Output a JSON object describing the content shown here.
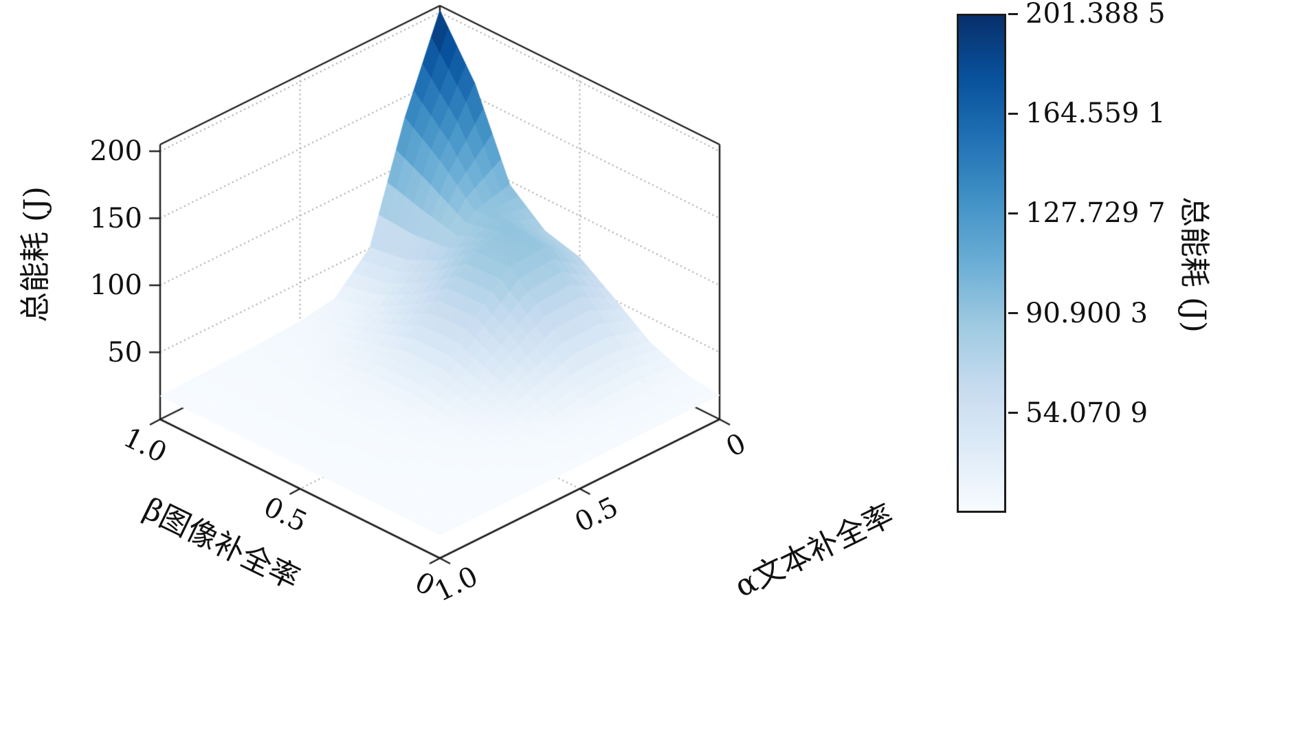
{
  "figure": {
    "background": "#ffffff"
  },
  "chart_data": {
    "type": "surface",
    "title": "",
    "xlabel": "α文本补全率",
    "ylabel": "β图像补全率",
    "zlabel": "总能耗 (J)",
    "x_axis": {
      "ticks": [
        {
          "label": "1.0",
          "value": 1.0
        },
        {
          "label": "0.5",
          "value": 0.5
        },
        {
          "label": "0",
          "value": 0.0
        }
      ],
      "range": [
        0,
        1
      ]
    },
    "y_axis": {
      "ticks": [
        {
          "label": "1.0",
          "value": 1.0
        },
        {
          "label": "0.5",
          "value": 0.5
        },
        {
          "label": "0",
          "value": 0.0
        }
      ],
      "range": [
        0,
        1
      ]
    },
    "z_axis": {
      "ticks": [
        {
          "label": "50",
          "value": 50
        },
        {
          "label": "100",
          "value": 100
        },
        {
          "label": "150",
          "value": 150
        },
        {
          "label": "200",
          "value": 200
        }
      ],
      "range": [
        0,
        205
      ]
    },
    "grid": true,
    "view": {
      "elev": 30,
      "azim": -60
    },
    "colorbar": {
      "label": "总能耗 (J)",
      "vmin": 17.2403,
      "vmax": 201.3885,
      "colormap": "Blues",
      "colormap_stops": [
        [
          0.0,
          "#f7fbff"
        ],
        [
          0.125,
          "#deebf7"
        ],
        [
          0.25,
          "#c6dbef"
        ],
        [
          0.375,
          "#9ecae1"
        ],
        [
          0.5,
          "#6baed6"
        ],
        [
          0.625,
          "#4292c6"
        ],
        [
          0.75,
          "#2171b5"
        ],
        [
          0.875,
          "#08519c"
        ],
        [
          1.0,
          "#08306b"
        ]
      ],
      "ticks": [
        {
          "label": "201.388 5",
          "value": 201.3885
        },
        {
          "label": "164.559 1",
          "value": 164.5591
        },
        {
          "label": "127.729 7",
          "value": 127.7297
        },
        {
          "label": "90.900 3",
          "value": 90.9003
        },
        {
          "label": "54.070 9",
          "value": 54.0709
        }
      ]
    },
    "alpha_values": [
      0,
      0.125,
      0.25,
      0.375,
      0.5,
      0.625,
      0.75,
      0.875,
      1.0
    ],
    "beta_values": [
      0,
      0.125,
      0.25,
      0.375,
      0.5,
      0.625,
      0.75,
      0.875,
      1.0
    ],
    "z_grid_note": "z[i][j] = 总能耗 (J) at alpha=alpha_values[i], beta=beta_values[j]",
    "z": [
      [
        17.9,
        21.4,
        31.8,
        51.0,
        68.9,
        76.0,
        97.3,
        159.9,
        201.4
      ],
      [
        18.1,
        22.9,
        37.6,
        65.0,
        89.9,
        92.7,
        90.7,
        115.2,
        134.3
      ],
      [
        18.1,
        22.7,
        36.9,
        63.7,
        87.4,
        86.1,
        66.4,
        54.2,
        50.5
      ],
      [
        17.8,
        20.9,
        30.4,
        47.9,
        63.5,
        62.1,
        46.1,
        31.7,
        25.4
      ],
      [
        17.5,
        19.0,
        23.4,
        31.3,
        38.3,
        37.7,
        30.6,
        24.0,
        21.2
      ],
      [
        17.4,
        18.0,
        19.4,
        21.9,
        24.1,
        24.1,
        22.2,
        20.4,
        19.7
      ],
      [
        17.3,
        17.5,
        17.9,
        18.6,
        19.1,
        19.3,
        19.0,
        18.8,
        18.7
      ],
      [
        17.3,
        17.4,
        17.5,
        17.7,
        17.8,
        17.9,
        17.9,
        17.9,
        18.0
      ],
      [
        17.3,
        17.3,
        17.3,
        17.3,
        17.3,
        17.3,
        17.3,
        17.3,
        17.3
      ]
    ]
  }
}
